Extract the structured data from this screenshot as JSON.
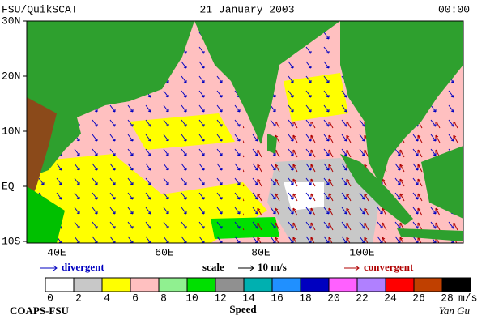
{
  "header": {
    "left": "FSU/QuikSCAT",
    "center": "21 January 2003",
    "right": "00:00"
  },
  "lat_labels": [
    "30N",
    "20N",
    "10N",
    "EQ",
    "10S"
  ],
  "lon_labels": [
    "40E",
    "60E",
    "80E",
    "100E"
  ],
  "legend": {
    "divergent": "divergent",
    "scale": "scale",
    "scale_value": "10 m/s",
    "convergent": "convergent"
  },
  "colorbar": {
    "labels": [
      0,
      2,
      4,
      6,
      8,
      10,
      12,
      14,
      16,
      18,
      20,
      22,
      24,
      26,
      28
    ],
    "unit": "m/s",
    "colors": [
      "#ffffff",
      "#c8c8c8",
      "#ffff00",
      "#ffc0c0",
      "#90f090",
      "#00e000",
      "#909090",
      "#00b0b0",
      "#2090ff",
      "#0000c0",
      "#ff60ff",
      "#b080ff",
      "#ff0000",
      "#c04000",
      "#000000"
    ],
    "title": "Speed"
  },
  "footer": {
    "left": "COAPS-FSU",
    "right": "Yan Gu"
  }
}
